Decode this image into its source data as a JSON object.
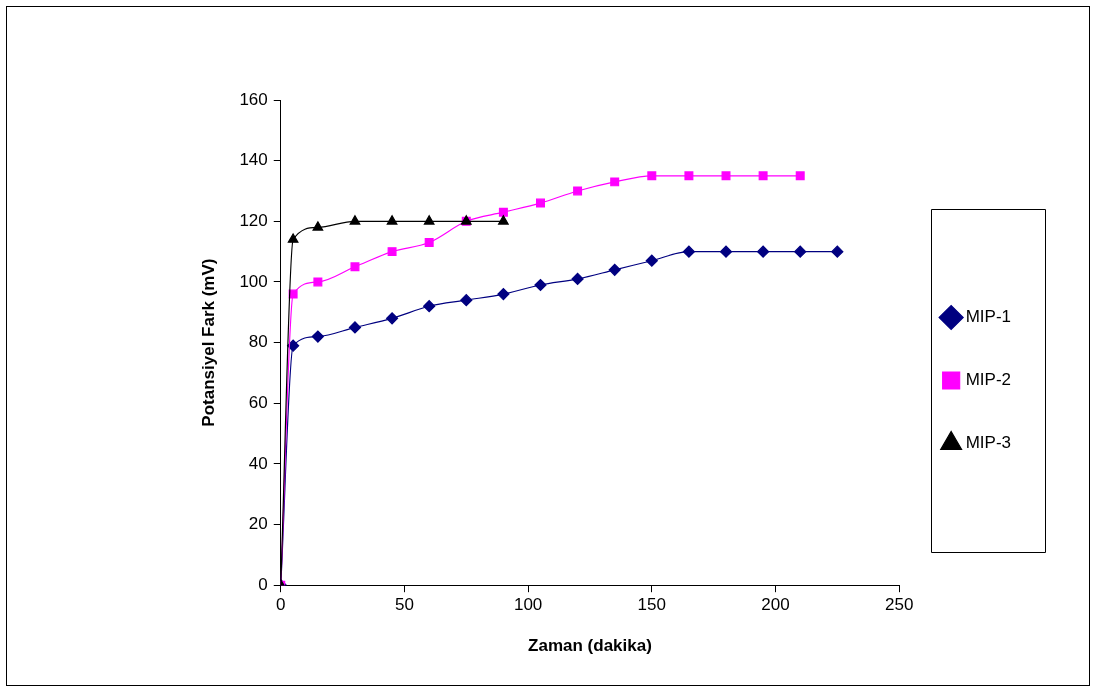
{
  "chart_data": {
    "type": "line",
    "xlabel": "Zaman (dakika)",
    "ylabel": "Potansiyel Fark (mV)",
    "xlim": [
      0,
      250
    ],
    "xticks": [
      0,
      50,
      100,
      150,
      200,
      250
    ],
    "ylim": [
      0,
      160
    ],
    "yticks": [
      0,
      20,
      40,
      60,
      80,
      100,
      120,
      140,
      160
    ],
    "grid": false,
    "legend": "right",
    "series": [
      {
        "name": "MIP-1",
        "color": "#000080",
        "marker": "diamond",
        "x": [
          0,
          5,
          15,
          30,
          45,
          60,
          75,
          90,
          105,
          120,
          135,
          150,
          165,
          180,
          195,
          210,
          225
        ],
        "values": [
          0,
          79,
          82,
          85,
          88,
          92,
          94,
          96,
          99,
          101,
          104,
          107,
          110,
          110,
          110,
          110,
          110
        ]
      },
      {
        "name": "MIP-2",
        "color": "#ff00ff",
        "marker": "square",
        "x": [
          0,
          5,
          15,
          30,
          45,
          60,
          75,
          90,
          105,
          120,
          135,
          150,
          165,
          180,
          195,
          210
        ],
        "values": [
          0,
          96,
          100,
          105,
          110,
          113,
          120,
          123,
          126,
          130,
          133,
          135,
          135,
          135,
          135,
          135
        ]
      },
      {
        "name": "MIP-3",
        "color": "#000000",
        "marker": "triangle",
        "x": [
          0,
          5,
          15,
          30,
          45,
          60,
          75,
          90
        ],
        "values": [
          0,
          114,
          118,
          120,
          120,
          120,
          120,
          120
        ]
      }
    ]
  }
}
